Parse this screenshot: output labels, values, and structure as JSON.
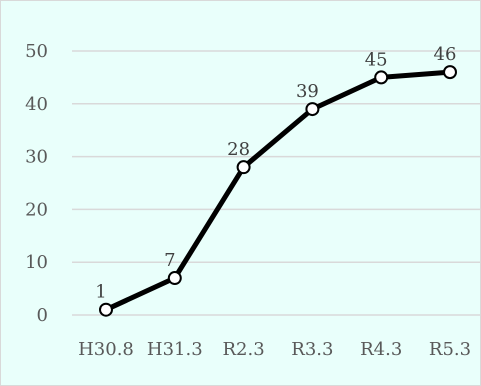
{
  "chart_data": {
    "type": "line",
    "title": "",
    "xlabel": "",
    "ylabel": "",
    "categories": [
      "H30.8",
      "H31.3",
      "R2.3",
      "R3.3",
      "R4.3",
      "R5.3"
    ],
    "series": [
      {
        "values": [
          1,
          7,
          28,
          39,
          45,
          46
        ]
      }
    ],
    "ylim": [
      0,
      50
    ],
    "yticks": [
      0,
      10,
      20,
      30,
      40,
      50
    ],
    "grid": true,
    "legend": "none",
    "colors": {
      "background": "#e9fffb",
      "line": "#000000",
      "marker_fill": "#ffffff",
      "gridline": "#d9d9d9"
    }
  }
}
